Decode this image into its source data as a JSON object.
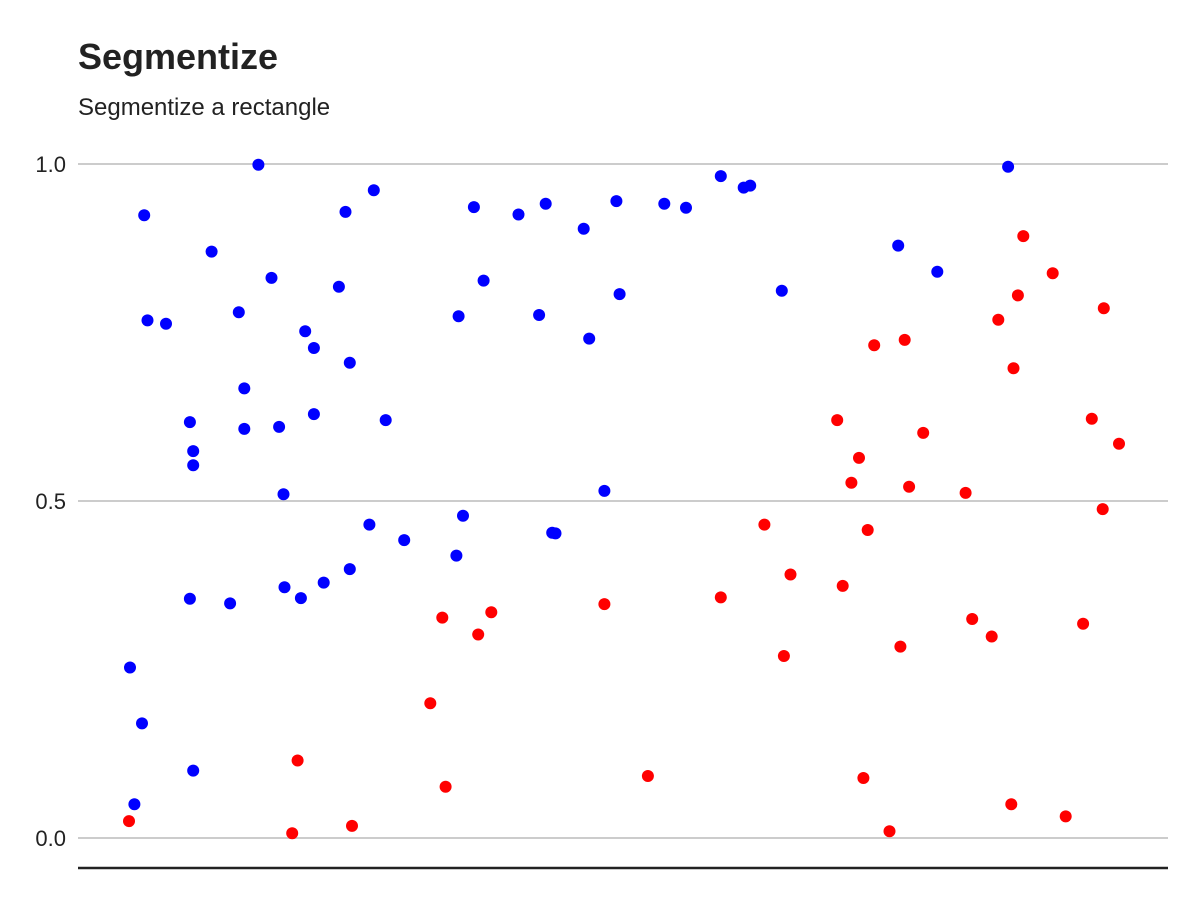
{
  "chart_data": {
    "type": "scatter",
    "title": "Segmentize",
    "subtitle": "Segmentize a rectangle",
    "xlabel": "",
    "ylabel": "",
    "ylim": [
      0,
      1
    ],
    "xlim": [
      0,
      1
    ],
    "yticks": [
      0,
      0.5,
      1
    ],
    "ytick_labels": [
      "0.0",
      "0.5",
      "1.0"
    ],
    "grid": "horizontal",
    "x_axis_line": true,
    "legend": "none",
    "series": [
      {
        "color": "#0000ff",
        "points": [
          [
            0.046,
            0.253
          ],
          [
            0.05,
            0.05
          ],
          [
            0.057,
            0.17
          ],
          [
            0.059,
            0.924
          ],
          [
            0.062,
            0.768
          ],
          [
            0.079,
            0.763
          ],
          [
            0.101,
            0.355
          ],
          [
            0.101,
            0.617
          ],
          [
            0.104,
            0.574
          ],
          [
            0.104,
            0.553
          ],
          [
            0.104,
            0.1
          ],
          [
            0.121,
            0.87
          ],
          [
            0.138,
            0.348
          ],
          [
            0.146,
            0.78
          ],
          [
            0.151,
            0.667
          ],
          [
            0.151,
            0.607
          ],
          [
            0.164,
            0.999
          ],
          [
            0.176,
            0.831
          ],
          [
            0.183,
            0.61
          ],
          [
            0.187,
            0.51
          ],
          [
            0.188,
            0.372
          ],
          [
            0.203,
            0.356
          ],
          [
            0.207,
            0.752
          ],
          [
            0.215,
            0.727
          ],
          [
            0.215,
            0.629
          ],
          [
            0.224,
            0.379
          ],
          [
            0.238,
            0.818
          ],
          [
            0.244,
            0.929
          ],
          [
            0.248,
            0.705
          ],
          [
            0.248,
            0.399
          ],
          [
            0.266,
            0.465
          ],
          [
            0.27,
            0.961
          ],
          [
            0.281,
            0.62
          ],
          [
            0.298,
            0.442
          ],
          [
            0.346,
            0.419
          ],
          [
            0.348,
            0.774
          ],
          [
            0.352,
            0.478
          ],
          [
            0.362,
            0.936
          ],
          [
            0.371,
            0.827
          ],
          [
            0.403,
            0.925
          ],
          [
            0.422,
            0.776
          ],
          [
            0.428,
            0.941
          ],
          [
            0.434,
            0.453
          ],
          [
            0.437,
            0.452
          ],
          [
            0.463,
            0.904
          ],
          [
            0.468,
            0.741
          ],
          [
            0.482,
            0.515
          ],
          [
            0.493,
            0.945
          ],
          [
            0.496,
            0.807
          ],
          [
            0.537,
            0.941
          ],
          [
            0.557,
            0.935
          ],
          [
            0.589,
            0.982
          ],
          [
            0.61,
            0.965
          ],
          [
            0.616,
            0.968
          ],
          [
            0.645,
            0.812
          ],
          [
            0.752,
            0.879
          ],
          [
            0.788,
            0.84
          ],
          [
            0.853,
            0.996
          ]
        ]
      },
      {
        "color": "#ff0000",
        "points": [
          [
            0.045,
            0.025
          ],
          [
            0.195,
            0.007
          ],
          [
            0.2,
            0.115
          ],
          [
            0.25,
            0.018
          ],
          [
            0.322,
            0.2
          ],
          [
            0.333,
            0.327
          ],
          [
            0.336,
            0.076
          ],
          [
            0.366,
            0.302
          ],
          [
            0.378,
            0.335
          ],
          [
            0.482,
            0.347
          ],
          [
            0.522,
            0.092
          ],
          [
            0.589,
            0.357
          ],
          [
            0.629,
            0.465
          ],
          [
            0.647,
            0.27
          ],
          [
            0.653,
            0.391
          ],
          [
            0.696,
            0.62
          ],
          [
            0.701,
            0.374
          ],
          [
            0.709,
            0.527
          ],
          [
            0.716,
            0.564
          ],
          [
            0.72,
            0.089
          ],
          [
            0.724,
            0.457
          ],
          [
            0.73,
            0.731
          ],
          [
            0.744,
            0.01
          ],
          [
            0.754,
            0.284
          ],
          [
            0.758,
            0.739
          ],
          [
            0.762,
            0.521
          ],
          [
            0.775,
            0.601
          ],
          [
            0.814,
            0.512
          ],
          [
            0.82,
            0.325
          ],
          [
            0.838,
            0.299
          ],
          [
            0.844,
            0.769
          ],
          [
            0.856,
            0.05
          ],
          [
            0.858,
            0.697
          ],
          [
            0.862,
            0.805
          ],
          [
            0.867,
            0.893
          ],
          [
            0.894,
            0.838
          ],
          [
            0.906,
            0.032
          ],
          [
            0.922,
            0.318
          ],
          [
            0.93,
            0.622
          ],
          [
            0.94,
            0.488
          ],
          [
            0.941,
            0.786
          ],
          [
            0.955,
            0.585
          ]
        ]
      }
    ]
  }
}
